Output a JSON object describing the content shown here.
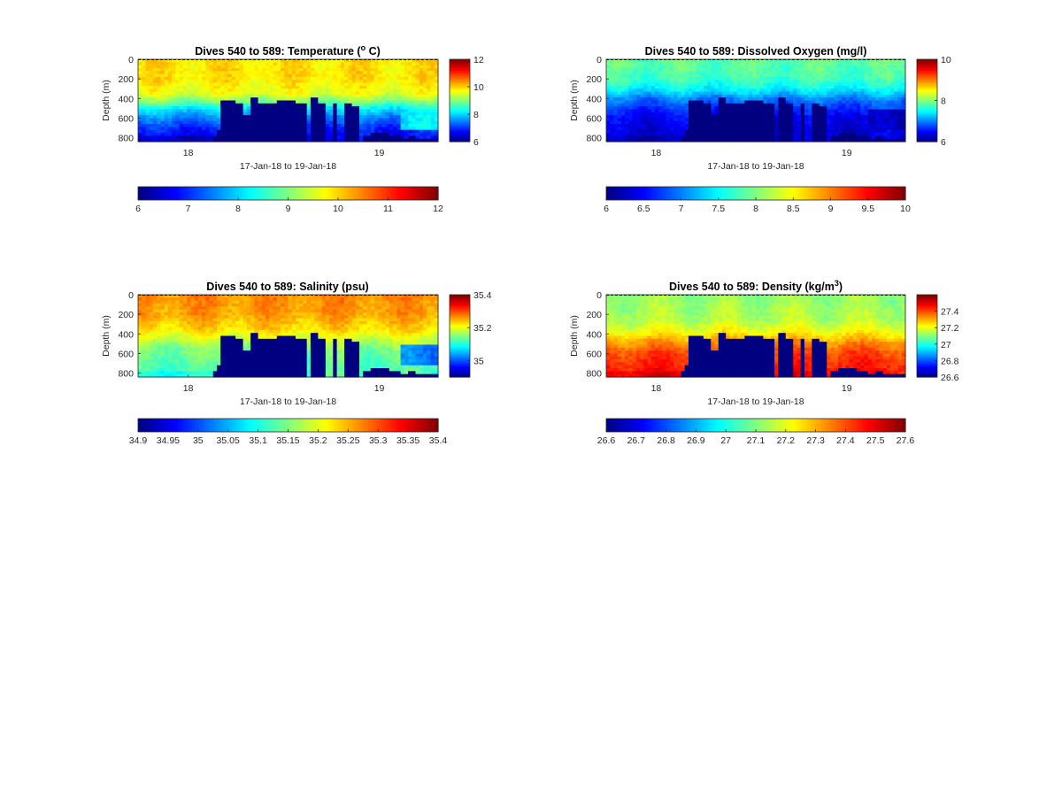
{
  "chart_data": [
    {
      "type": "heatmap",
      "title": "Dives 540 to 589: Temperature (",
      "title_sup": "o",
      "title_tail": " C)",
      "xlabel": "17-Jan-18 to 19-Jan-18",
      "ylabel": "Depth (m)",
      "xticks": [
        "18",
        "19"
      ],
      "yticks": [
        "0",
        "200",
        "400",
        "600",
        "800"
      ],
      "ylim": [
        0,
        840
      ],
      "clim": [
        6,
        12
      ],
      "colorbar_ticks": [
        "6",
        "8",
        "10",
        "12"
      ],
      "hcolorbar_ticks": [
        "6",
        "7",
        "8",
        "9",
        "10",
        "11",
        "12"
      ],
      "profile": [
        [
          0,
          9.9
        ],
        [
          200,
          9.9
        ],
        [
          350,
          9.6
        ],
        [
          430,
          9.0
        ],
        [
          500,
          8.2
        ],
        [
          600,
          7.5
        ],
        [
          700,
          7.0
        ],
        [
          840,
          6.6
        ]
      ],
      "bottom_value": 6.4,
      "mask_value": 6
    },
    {
      "type": "heatmap",
      "title": "Dives 540 to 589: Dissolved Oxygen (mg/l)",
      "xlabel": "17-Jan-18 to 19-Jan-18",
      "ylabel": "Depth (m)",
      "xticks": [
        "18",
        "19"
      ],
      "yticks": [
        "0",
        "200",
        "400",
        "600",
        "800"
      ],
      "ylim": [
        0,
        840
      ],
      "clim": [
        6,
        10
      ],
      "colorbar_ticks": [
        "6",
        "8",
        "10"
      ],
      "hcolorbar_ticks": [
        "6",
        "6.5",
        "7",
        "7.5",
        "8",
        "8.5",
        "9",
        "9.5",
        "10"
      ],
      "profile": [
        [
          0,
          7.9
        ],
        [
          200,
          7.75
        ],
        [
          300,
          7.5
        ],
        [
          400,
          7.0
        ],
        [
          500,
          6.7
        ],
        [
          600,
          6.45
        ],
        [
          840,
          6.3
        ]
      ],
      "bottom_value": 6.2,
      "mask_value": 6
    },
    {
      "type": "heatmap",
      "title": "Dives 540 to 589: Salinity (psu)",
      "xlabel": "17-Jan-18 to 19-Jan-18",
      "ylabel": "Depth (m)",
      "xticks": [
        "18",
        "19"
      ],
      "yticks": [
        "0",
        "200",
        "400",
        "600",
        "800"
      ],
      "ylim": [
        0,
        840
      ],
      "clim": [
        34.9,
        35.4
      ],
      "colorbar_ticks": [
        "35",
        "35.2",
        "35.4"
      ],
      "hcolorbar_ticks": [
        "34.9",
        "34.95",
        "35",
        "35.05",
        "35.1",
        "35.15",
        "35.2",
        "35.25",
        "35.3",
        "35.35",
        "35.4"
      ],
      "profile": [
        [
          0,
          35.27
        ],
        [
          200,
          35.26
        ],
        [
          350,
          35.23
        ],
        [
          450,
          35.19
        ],
        [
          550,
          35.15
        ],
        [
          700,
          35.13
        ],
        [
          840,
          35.12
        ]
      ],
      "bottom_value": 35.1,
      "mask_value": 34.9
    },
    {
      "type": "heatmap",
      "title": "Dives 540 to 589: Density (kg/m",
      "title_sup": "3",
      "title_tail": ")",
      "xlabel": "17-Jan-18 to 19-Jan-18",
      "ylabel": "Depth (m)",
      "xticks": [
        "18",
        "19"
      ],
      "yticks": [
        "0",
        "200",
        "400",
        "600",
        "800"
      ],
      "ylim": [
        0,
        840
      ],
      "clim": [
        26.6,
        27.6
      ],
      "colorbar_ticks": [
        "26.6",
        "26.8",
        "27",
        "27.2",
        "27.4"
      ],
      "hcolorbar_ticks": [
        "26.6",
        "26.7",
        "26.8",
        "26.9",
        "27",
        "27.1",
        "27.2",
        "27.3",
        "27.4",
        "27.5",
        "27.6"
      ],
      "profile": [
        [
          0,
          27.12
        ],
        [
          250,
          27.15
        ],
        [
          380,
          27.22
        ],
        [
          480,
          27.32
        ],
        [
          580,
          27.4
        ],
        [
          700,
          27.44
        ],
        [
          840,
          27.48
        ]
      ],
      "bottom_value": 27.5,
      "mask_value": 26.6
    }
  ],
  "mask_columns": [
    [
      0.0,
      null
    ],
    [
      0.214,
      null
    ],
    [
      0.244,
      780
    ],
    [
      0.259,
      720
    ],
    [
      0.278,
      410
    ],
    [
      0.302,
      420
    ],
    [
      0.32,
      450
    ],
    [
      0.355,
      580
    ],
    [
      0.378,
      400
    ],
    [
      0.397,
      440
    ],
    [
      0.421,
      460
    ],
    [
      0.441,
      450
    ],
    [
      0.464,
      430
    ],
    [
      0.484,
      420
    ],
    [
      0.505,
      420
    ],
    [
      0.53,
      440
    ],
    [
      0.559,
      840
    ],
    [
      0.576,
      390
    ],
    [
      0.598,
      440
    ],
    [
      0.629,
      840
    ],
    [
      0.645,
      460
    ],
    [
      0.667,
      840
    ],
    [
      0.685,
      460
    ],
    [
      0.712,
      480
    ],
    [
      0.732,
      840
    ],
    [
      0.745,
      790
    ],
    [
      0.771,
      760
    ],
    [
      0.794,
      750
    ],
    [
      0.818,
      760
    ],
    [
      0.838,
      780
    ],
    [
      0.858,
      780
    ],
    [
      0.877,
      800
    ],
    [
      0.9,
      790
    ],
    [
      0.923,
      800
    ],
    [
      0.948,
      820
    ],
    [
      0.974,
      810
    ],
    [
      1.0,
      null
    ]
  ]
}
